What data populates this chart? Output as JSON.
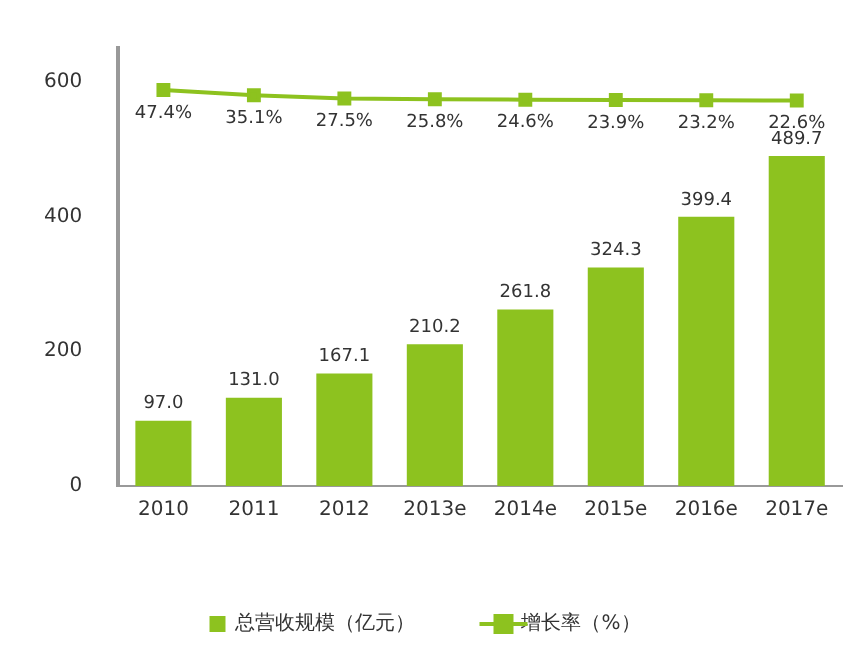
{
  "chart_data": {
    "type": "bar",
    "categories": [
      "2010",
      "2011",
      "2012",
      "2013e",
      "2014e",
      "2015e",
      "2016e",
      "2017e"
    ],
    "series": [
      {
        "name": "总营收规模（亿元）",
        "color": "#8dc21f",
        "values": [
          97.0,
          131.0,
          167.1,
          210.2,
          261.8,
          324.3,
          399.4,
          489.7
        ],
        "value_labels": [
          "97.0",
          "131.0",
          "167.1",
          "210.2",
          "261.8",
          "324.3",
          "399.4",
          "489.7"
        ]
      },
      {
        "name": "增长率（%）",
        "type": "line",
        "axis": "y2",
        "color": "#8dc21f",
        "values": [
          47.4,
          35.1,
          27.5,
          25.8,
          24.6,
          23.9,
          23.2,
          22.6
        ],
        "value_labels": [
          "47.4%",
          "35.1%",
          "27.5%",
          "25.8%",
          "24.6%",
          "23.9%",
          "23.2%",
          "22.6%"
        ]
      }
    ],
    "ylim": [
      0,
      650
    ],
    "yticks": [
      0,
      200,
      400,
      600
    ],
    "y2lim": [
      -890,
      147
    ],
    "grid": false,
    "legend": "bottom",
    "marker": "square"
  }
}
